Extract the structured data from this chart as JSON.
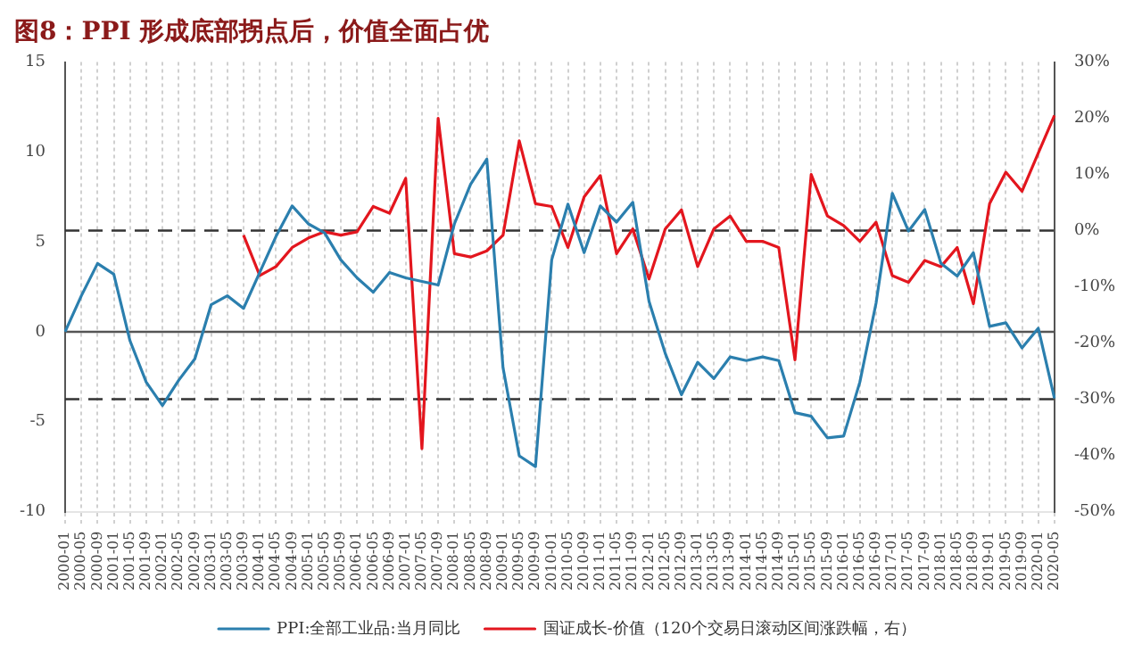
{
  "chart_data": {
    "type": "line",
    "title": "图8：PPI 形成底部拐点后，价值全面占优",
    "categories": [
      "2000-01",
      "2000-05",
      "2000-09",
      "2001-01",
      "2001-05",
      "2001-09",
      "2002-01",
      "2002-05",
      "2002-09",
      "2003-01",
      "2003-05",
      "2003-09",
      "2004-01",
      "2004-05",
      "2004-09",
      "2005-01",
      "2005-05",
      "2005-09",
      "2006-01",
      "2006-05",
      "2006-09",
      "2007-01",
      "2007-05",
      "2007-09",
      "2008-01",
      "2008-05",
      "2008-09",
      "2009-01",
      "2009-05",
      "2009-09",
      "2010-01",
      "2010-05",
      "2010-09",
      "2011-01",
      "2011-05",
      "2011-09",
      "2012-01",
      "2012-05",
      "2012-09",
      "2013-01",
      "2013-05",
      "2013-09",
      "2014-01",
      "2014-05",
      "2014-09",
      "2015-01",
      "2015-05",
      "2015-09",
      "2016-01",
      "2016-05",
      "2016-09",
      "2017-01",
      "2017-05",
      "2017-09",
      "2018-01",
      "2018-05",
      "2018-09",
      "2019-01",
      "2019-05",
      "2019-09",
      "2020-01",
      "2020-05"
    ],
    "series": [
      {
        "name": "PPI:全部工业品:当月同比",
        "color": "#2b7fae",
        "values": [
          0,
          2.0,
          3.8,
          3.2,
          -0.5,
          -2.8,
          -4.1,
          -2.7,
          -1.5,
          1.5,
          2.0,
          1.3,
          3.3,
          5.3,
          7.0,
          6.0,
          5.5,
          4.0,
          3.0,
          2.2,
          3.3,
          3.0,
          2.8,
          2.6,
          6.0,
          8.2,
          9.6,
          -2.0,
          -6.9,
          -7.5,
          4.0,
          7.1,
          4.4,
          7.0,
          6.1,
          7.2,
          1.7,
          -1.2,
          -3.5,
          -1.7,
          -2.6,
          -1.4,
          -1.6,
          -1.4,
          -1.6,
          -4.5,
          -4.7,
          -5.9,
          -5.8,
          -2.8,
          1.6,
          7.7,
          5.6,
          6.8,
          3.8,
          3.1,
          4.4,
          0.3,
          0.5,
          -0.9,
          0.2,
          -3.7
        ]
      },
      {
        "name": "国证成长-价值（120个交易日滚动区间涨跌幅，右）",
        "color": "#e3161e",
        "axis": "y2",
        "values": [
          null,
          null,
          null,
          null,
          null,
          null,
          null,
          null,
          null,
          null,
          null,
          -0.8,
          -8,
          -6.4,
          -3,
          -1.3,
          -0.2,
          -0.8,
          -0.2,
          4.3,
          3.1,
          9.3,
          -38.8,
          20,
          -4.1,
          -4.7,
          -3.6,
          -0.8,
          16,
          4.8,
          4.3,
          -3,
          6,
          9.8,
          -4.1,
          0.3,
          -8.6,
          0.3,
          3.7,
          -6.4,
          0.3,
          2.6,
          -1.9,
          -1.9,
          -3,
          -23,
          10,
          2.6,
          0.9,
          -1.9,
          1.5,
          -8,
          -9.2,
          -5.3,
          -6.4,
          -3,
          -13,
          4.8,
          10.4,
          7,
          13.8,
          20.5
        ]
      }
    ],
    "ylim": [
      -10,
      15
    ],
    "yticks": [
      -10,
      -5,
      0,
      5,
      10,
      15
    ],
    "y2lim": [
      -50,
      30
    ],
    "y2ticks": [
      {
        "value": -50,
        "label": "-50%"
      },
      {
        "value": -40,
        "label": "-40%"
      },
      {
        "value": -30,
        "label": "-30%"
      },
      {
        "value": -20,
        "label": "-20%"
      },
      {
        "value": -10,
        "label": "-10%"
      },
      {
        "value": 0,
        "label": "0%"
      },
      {
        "value": 10,
        "label": "10%"
      },
      {
        "value": 20,
        "label": "20%"
      },
      {
        "value": 30,
        "label": "30%"
      }
    ],
    "ref_lines": [
      {
        "axis": "y",
        "value": 0,
        "line_style": "solid",
        "color": "#555555"
      },
      {
        "axis": "y2",
        "value": 0,
        "line_style": "dashed",
        "color": "#333333"
      },
      {
        "axis": "y2",
        "value": -30,
        "line_style": "dashed",
        "color": "#333333"
      }
    ],
    "grid": "x",
    "legend": "bottom",
    "marker": "none",
    "line_style": "solid"
  }
}
